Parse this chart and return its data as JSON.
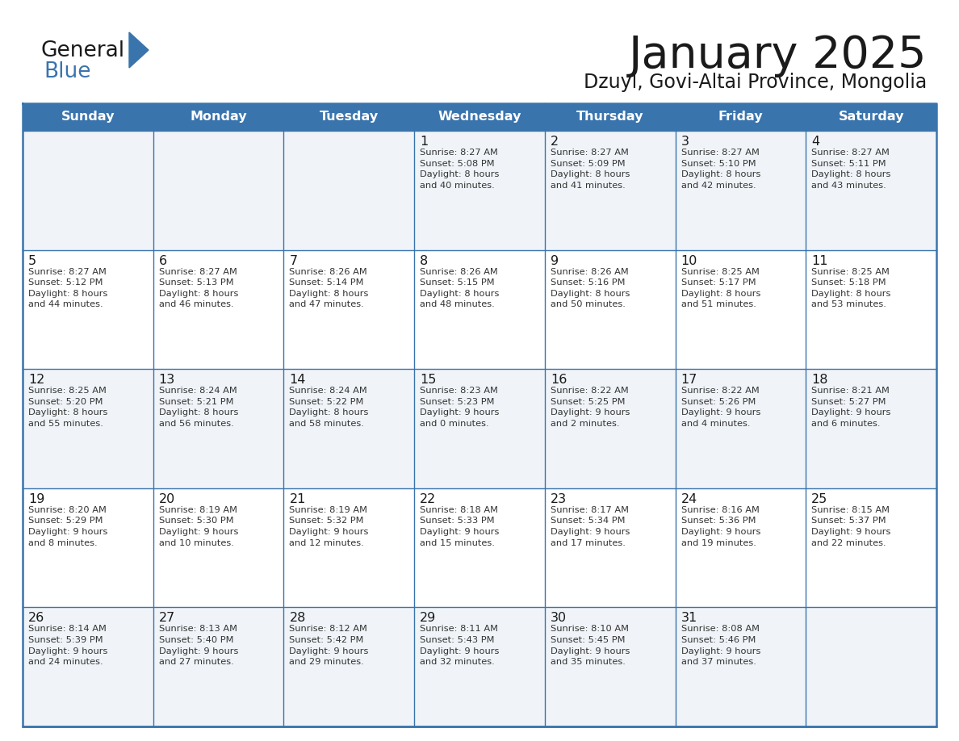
{
  "title": "January 2025",
  "subtitle": "Dzuyl, Govi-Altai Province, Mongolia",
  "header_bg_color": "#3A74AD",
  "header_text_color": "#FFFFFF",
  "cell_line_color": "#3A74AD",
  "row_alt_color": "#F0F4F8",
  "row_normal_color": "#FFFFFF",
  "bg_color": "#FFFFFF",
  "day_names": [
    "Sunday",
    "Monday",
    "Tuesday",
    "Wednesday",
    "Thursday",
    "Friday",
    "Saturday"
  ],
  "title_color": "#1A1A1A",
  "subtitle_color": "#1A1A1A",
  "logo_general_color": "#1A1A1A",
  "logo_blue_color": "#3A74AD",
  "logo_triangle_color": "#3A74AD",
  "calendar_data": [
    [
      {
        "day": "",
        "text": ""
      },
      {
        "day": "",
        "text": ""
      },
      {
        "day": "",
        "text": ""
      },
      {
        "day": "1",
        "text": "Sunrise: 8:27 AM\nSunset: 5:08 PM\nDaylight: 8 hours\nand 40 minutes."
      },
      {
        "day": "2",
        "text": "Sunrise: 8:27 AM\nSunset: 5:09 PM\nDaylight: 8 hours\nand 41 minutes."
      },
      {
        "day": "3",
        "text": "Sunrise: 8:27 AM\nSunset: 5:10 PM\nDaylight: 8 hours\nand 42 minutes."
      },
      {
        "day": "4",
        "text": "Sunrise: 8:27 AM\nSunset: 5:11 PM\nDaylight: 8 hours\nand 43 minutes."
      }
    ],
    [
      {
        "day": "5",
        "text": "Sunrise: 8:27 AM\nSunset: 5:12 PM\nDaylight: 8 hours\nand 44 minutes."
      },
      {
        "day": "6",
        "text": "Sunrise: 8:27 AM\nSunset: 5:13 PM\nDaylight: 8 hours\nand 46 minutes."
      },
      {
        "day": "7",
        "text": "Sunrise: 8:26 AM\nSunset: 5:14 PM\nDaylight: 8 hours\nand 47 minutes."
      },
      {
        "day": "8",
        "text": "Sunrise: 8:26 AM\nSunset: 5:15 PM\nDaylight: 8 hours\nand 48 minutes."
      },
      {
        "day": "9",
        "text": "Sunrise: 8:26 AM\nSunset: 5:16 PM\nDaylight: 8 hours\nand 50 minutes."
      },
      {
        "day": "10",
        "text": "Sunrise: 8:25 AM\nSunset: 5:17 PM\nDaylight: 8 hours\nand 51 minutes."
      },
      {
        "day": "11",
        "text": "Sunrise: 8:25 AM\nSunset: 5:18 PM\nDaylight: 8 hours\nand 53 minutes."
      }
    ],
    [
      {
        "day": "12",
        "text": "Sunrise: 8:25 AM\nSunset: 5:20 PM\nDaylight: 8 hours\nand 55 minutes."
      },
      {
        "day": "13",
        "text": "Sunrise: 8:24 AM\nSunset: 5:21 PM\nDaylight: 8 hours\nand 56 minutes."
      },
      {
        "day": "14",
        "text": "Sunrise: 8:24 AM\nSunset: 5:22 PM\nDaylight: 8 hours\nand 58 minutes."
      },
      {
        "day": "15",
        "text": "Sunrise: 8:23 AM\nSunset: 5:23 PM\nDaylight: 9 hours\nand 0 minutes."
      },
      {
        "day": "16",
        "text": "Sunrise: 8:22 AM\nSunset: 5:25 PM\nDaylight: 9 hours\nand 2 minutes."
      },
      {
        "day": "17",
        "text": "Sunrise: 8:22 AM\nSunset: 5:26 PM\nDaylight: 9 hours\nand 4 minutes."
      },
      {
        "day": "18",
        "text": "Sunrise: 8:21 AM\nSunset: 5:27 PM\nDaylight: 9 hours\nand 6 minutes."
      }
    ],
    [
      {
        "day": "19",
        "text": "Sunrise: 8:20 AM\nSunset: 5:29 PM\nDaylight: 9 hours\nand 8 minutes."
      },
      {
        "day": "20",
        "text": "Sunrise: 8:19 AM\nSunset: 5:30 PM\nDaylight: 9 hours\nand 10 minutes."
      },
      {
        "day": "21",
        "text": "Sunrise: 8:19 AM\nSunset: 5:32 PM\nDaylight: 9 hours\nand 12 minutes."
      },
      {
        "day": "22",
        "text": "Sunrise: 8:18 AM\nSunset: 5:33 PM\nDaylight: 9 hours\nand 15 minutes."
      },
      {
        "day": "23",
        "text": "Sunrise: 8:17 AM\nSunset: 5:34 PM\nDaylight: 9 hours\nand 17 minutes."
      },
      {
        "day": "24",
        "text": "Sunrise: 8:16 AM\nSunset: 5:36 PM\nDaylight: 9 hours\nand 19 minutes."
      },
      {
        "day": "25",
        "text": "Sunrise: 8:15 AM\nSunset: 5:37 PM\nDaylight: 9 hours\nand 22 minutes."
      }
    ],
    [
      {
        "day": "26",
        "text": "Sunrise: 8:14 AM\nSunset: 5:39 PM\nDaylight: 9 hours\nand 24 minutes."
      },
      {
        "day": "27",
        "text": "Sunrise: 8:13 AM\nSunset: 5:40 PM\nDaylight: 9 hours\nand 27 minutes."
      },
      {
        "day": "28",
        "text": "Sunrise: 8:12 AM\nSunset: 5:42 PM\nDaylight: 9 hours\nand 29 minutes."
      },
      {
        "day": "29",
        "text": "Sunrise: 8:11 AM\nSunset: 5:43 PM\nDaylight: 9 hours\nand 32 minutes."
      },
      {
        "day": "30",
        "text": "Sunrise: 8:10 AM\nSunset: 5:45 PM\nDaylight: 9 hours\nand 35 minutes."
      },
      {
        "day": "31",
        "text": "Sunrise: 8:08 AM\nSunset: 5:46 PM\nDaylight: 9 hours\nand 37 minutes."
      },
      {
        "day": "",
        "text": ""
      }
    ]
  ]
}
